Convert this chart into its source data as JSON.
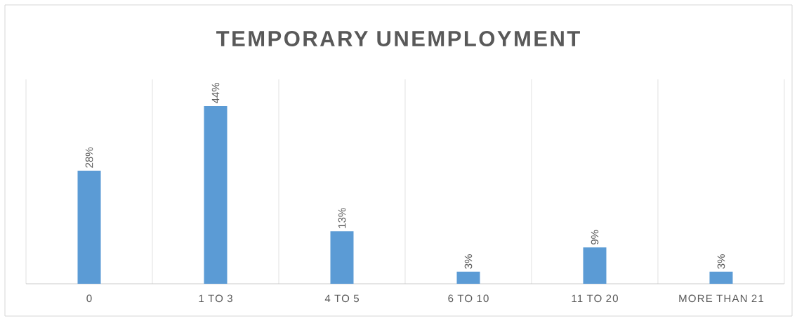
{
  "chart_data": {
    "type": "bar",
    "title": "TEMPORARY UNEMPLOYMENT",
    "categories": [
      "0",
      "1 TO 3",
      "4 TO 5",
      "6 TO 10",
      "11 TO 20",
      "MORE THAN 21"
    ],
    "values": [
      28,
      44,
      13,
      3,
      9,
      3
    ],
    "value_labels": [
      "28%",
      "44%",
      "13%",
      "3%",
      "9%",
      "3%"
    ],
    "color": "#5b9bd5",
    "grid": "x"
  }
}
